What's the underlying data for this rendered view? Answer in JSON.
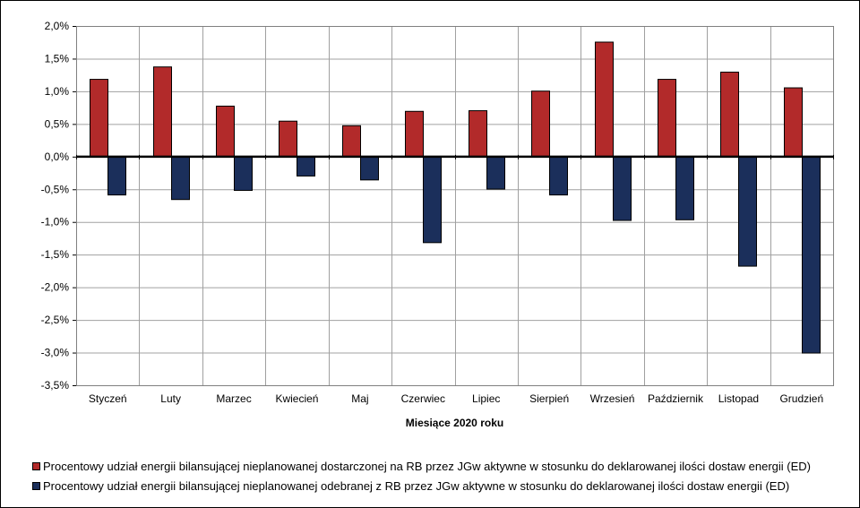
{
  "chart_data": {
    "type": "bar",
    "categories": [
      "Styczeń",
      "Luty",
      "Marzec",
      "Kwiecień",
      "Maj",
      "Czerwiec",
      "Lipiec",
      "Sierpień",
      "Wrzesień",
      "Październik",
      "Listopad",
      "Grudzień"
    ],
    "series": [
      {
        "name": "Procentowy udział energii bilansującej nieplanowanej dostarczonej na RB przez JGw aktywne w stosunku do deklarowanej ilości dostaw energii (ED)",
        "color": "#B22A2A",
        "values": [
          1.19,
          1.38,
          0.78,
          0.55,
          0.48,
          0.7,
          0.71,
          1.01,
          1.76,
          1.19,
          1.3,
          1.06
        ]
      },
      {
        "name": "Procentowy udział energii bilansującej nieplanowanej odebranej z RB przez JGw aktywne w stosunku do deklarowanej ilości dostaw energii (ED)",
        "color": "#1B2F5B",
        "values": [
          -0.58,
          -0.65,
          -0.51,
          -0.29,
          -0.35,
          -1.31,
          -0.49,
          -0.58,
          -0.97,
          -0.96,
          -1.67,
          -3.0
        ]
      }
    ],
    "xlabel": "Miesiące 2020  roku",
    "ylabel": "",
    "ylim": [
      -3.5,
      2.0
    ],
    "yticks": [
      2.0,
      1.5,
      1.0,
      0.5,
      0.0,
      -0.5,
      -1.0,
      -1.5,
      -2.0,
      -2.5,
      -3.0,
      -3.5
    ],
    "ytick_labels": [
      "2,0%",
      "1,5%",
      "1,0%",
      "0,5%",
      "0,0%",
      "-0,5%",
      "-1,0%",
      "-1,5%",
      "-2,0%",
      "-2,5%",
      "-3,0%",
      "-3,5%"
    ],
    "grid": true,
    "legend": "bottom"
  }
}
